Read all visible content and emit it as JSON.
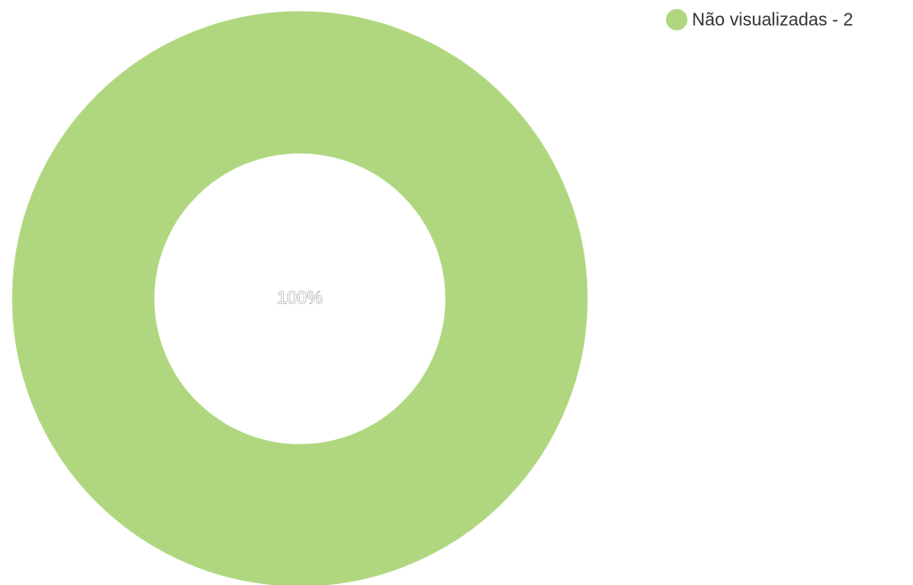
{
  "chart_data": {
    "type": "donut",
    "categories": [
      "Não visualizadas - 2"
    ],
    "values": [
      100
    ],
    "value_labels": [
      "100%"
    ],
    "colors": [
      "#b0d77f"
    ],
    "legend": "top-right"
  }
}
